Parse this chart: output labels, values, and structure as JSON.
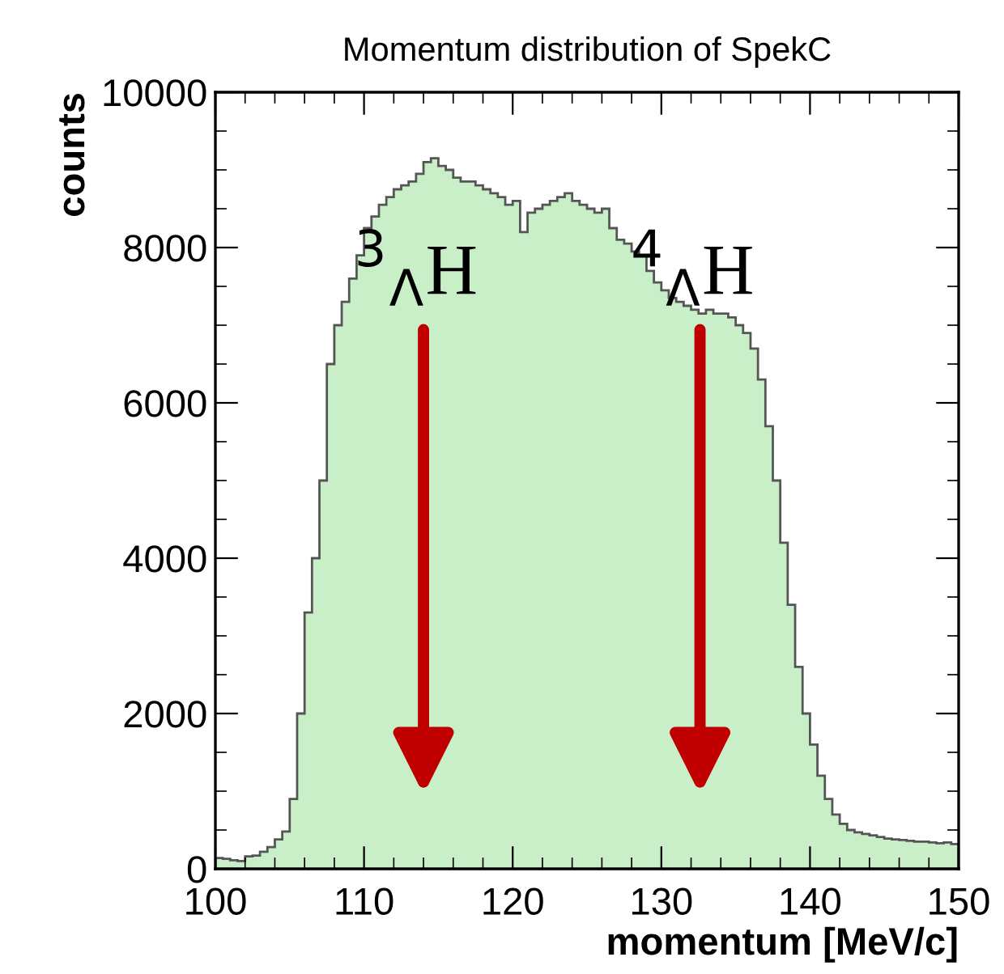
{
  "chart_data": {
    "type": "histogram",
    "title": "Momentum distribution of SpekC",
    "xlabel": "momentum [MeV/c]",
    "ylabel": "counts",
    "bins": [
      100,
      100.5,
      101,
      101.5,
      102,
      102.5,
      103,
      103.5,
      104,
      104.5,
      105,
      105.5,
      106,
      106.5,
      107,
      107.5,
      108,
      108.5,
      109,
      109.5,
      110,
      110.5,
      111,
      111.5,
      112,
      112.5,
      113,
      113.5,
      114,
      114.5,
      115,
      115.5,
      116,
      116.5,
      117,
      117.5,
      118,
      118.5,
      119,
      119.5,
      120,
      120.5,
      121,
      121.5,
      122,
      122.5,
      123,
      123.5,
      124,
      124.5,
      125,
      125.5,
      126,
      126.5,
      127,
      127.5,
      128,
      128.5,
      129,
      129.5,
      130,
      130.5,
      131,
      131.5,
      132,
      132.5,
      133,
      133.5,
      134,
      134.5,
      135,
      135.5,
      136,
      136.5,
      137,
      137.5,
      138,
      138.5,
      139,
      139.5,
      140,
      140.5,
      141,
      141.5,
      142,
      142.5,
      143,
      143.5,
      144,
      144.5,
      145,
      145.5,
      146,
      146.5,
      147,
      147.5,
      148,
      148.5,
      149,
      149.5,
      150
    ],
    "values": [
      140,
      130,
      110,
      100,
      160,
      170,
      220,
      280,
      380,
      480,
      900,
      2000,
      3300,
      4000,
      5000,
      6500,
      7000,
      7300,
      7600,
      7900,
      8250,
      8400,
      8550,
      8650,
      8750,
      8800,
      8850,
      8950,
      9100,
      9150,
      9050,
      9000,
      8900,
      8850,
      8850,
      8800,
      8750,
      8700,
      8650,
      8550,
      8600,
      8200,
      8450,
      8500,
      8550,
      8600,
      8650,
      8700,
      8600,
      8550,
      8500,
      8450,
      8500,
      8250,
      8100,
      8050,
      7950,
      7900,
      7700,
      7550,
      7450,
      7350,
      7300,
      7250,
      7200,
      7150,
      7200,
      7150,
      7150,
      7100,
      7000,
      6900,
      6700,
      6300,
      5700,
      5000,
      4200,
      3400,
      2600,
      2000,
      1600,
      1200,
      900,
      700,
      580,
      500,
      470,
      450,
      430,
      410,
      390,
      380,
      370,
      360,
      350,
      350,
      340,
      330,
      340,
      320
    ],
    "color": "#c9efc9",
    "xlim": [
      100,
      150
    ],
    "xticks": [
      100,
      110,
      120,
      130,
      140,
      150
    ],
    "ylim": [
      0,
      10000
    ],
    "yticks": [
      0,
      2000,
      4000,
      6000,
      8000,
      10000
    ],
    "grid": false,
    "legend": false,
    "annotations": [
      "$^{3}$$_{Λ}$H",
      "$^{4}$$_{Λ}$H"
    ]
  }
}
